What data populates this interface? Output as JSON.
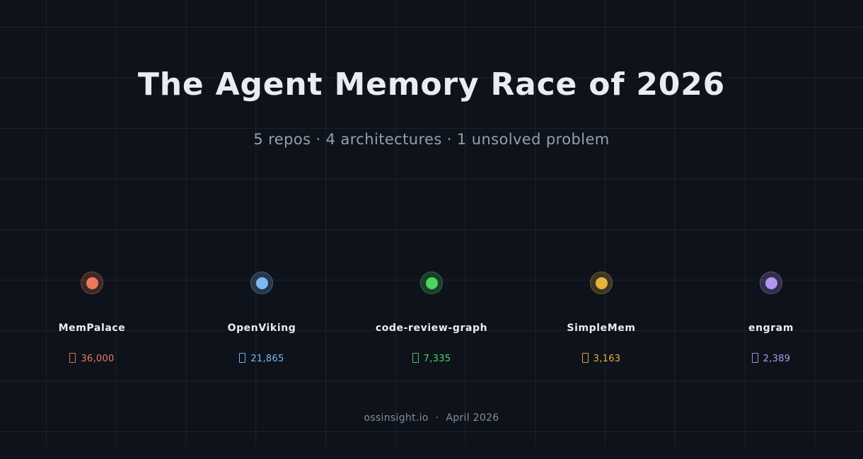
{
  "title": "The Agent Memory Race of 2026",
  "subtitle": "5 repos · 4 architectures · 1 unsolved problem",
  "footer": {
    "source": "ossinsight.io",
    "separator": "·",
    "date": "April 2026"
  },
  "colors": {
    "background": "#0e121a",
    "grid_line": "rgba(150,165,190,0.10)",
    "title_text": "#e8edf4",
    "subtitle_text": "#94a0ad",
    "label_text": "#e9edf3",
    "footer_text": "#848e9c"
  },
  "chart_data": {
    "type": "scatter",
    "title": "The Agent Memory Race of 2026",
    "subtitle": "5 repos · 4 architectures · 1 unsolved problem",
    "categories": [
      "MemPalace",
      "OpenViking",
      "code-review-graph",
      "SimpleMem",
      "engram"
    ],
    "values": [
      36000,
      21865,
      7335,
      3163,
      2389
    ],
    "value_labels": [
      "36,000",
      "21,865",
      "7,335",
      "3,163",
      "2,389"
    ],
    "legend_position": "none",
    "grid": true,
    "nodes": [
      {
        "name": "MemPalace",
        "value": 36000,
        "label": "36,000",
        "color": "#ee7a5e"
      },
      {
        "name": "OpenViking",
        "value": 21865,
        "label": "21,865",
        "color": "#7db8f2"
      },
      {
        "name": "code-review-graph",
        "value": 7335,
        "label": "7,335",
        "color": "#4cd45f"
      },
      {
        "name": "SimpleMem",
        "value": 3163,
        "label": "3,163",
        "color": "#e5b23e"
      },
      {
        "name": "engram",
        "value": 2389,
        "label": "2,389",
        "color": "#b494f2"
      }
    ]
  }
}
